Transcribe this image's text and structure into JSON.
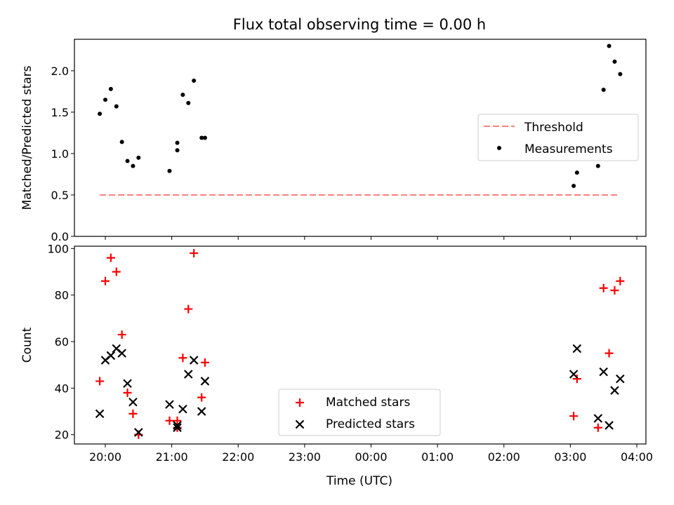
{
  "chart_data": [
    {
      "type": "scatter",
      "title": "Flux total observing time = 0.00 h",
      "ylabel": "Matched/Predicted stars",
      "xlabel": "",
      "x_tick_labels": [
        "20:00",
        "21:00",
        "22:00",
        "23:00",
        "00:00",
        "01:00",
        "02:00",
        "03:00",
        "04:00"
      ],
      "y_ticks": [
        0.0,
        0.5,
        1.0,
        1.5,
        2.0
      ],
      "y_tick_labels": [
        "0.0",
        "0.5",
        "1.0",
        "1.5",
        "2.0"
      ],
      "ylim": [
        0,
        2.38
      ],
      "legend_position": "center-right",
      "threshold": {
        "name": "Threshold",
        "value": 0.5,
        "x_range": [
          "19:55",
          "03:45"
        ],
        "color": "#ff7f7f",
        "style": "dashed"
      },
      "series": [
        {
          "name": "Measurements",
          "color": "#000000",
          "marker": "dot",
          "x": [
            "19:55",
            "20:00",
            "20:05",
            "20:10",
            "20:15",
            "20:20",
            "20:25",
            "20:30",
            "20:58",
            "21:05",
            "21:05",
            "21:10",
            "21:15",
            "21:20",
            "21:27",
            "21:30",
            "03:03",
            "03:06",
            "03:25",
            "03:30",
            "03:35",
            "03:40",
            "03:45"
          ],
          "y": [
            1.48,
            1.65,
            1.78,
            1.57,
            1.14,
            0.91,
            0.85,
            0.95,
            0.79,
            1.13,
            1.04,
            1.71,
            1.61,
            1.88,
            1.19,
            1.19,
            0.61,
            0.77,
            0.85,
            1.77,
            2.3,
            2.11,
            1.96
          ]
        }
      ]
    },
    {
      "type": "scatter",
      "title": "",
      "ylabel": "Count",
      "xlabel": "Time (UTC)",
      "x_tick_labels": [
        "20:00",
        "21:00",
        "22:00",
        "23:00",
        "00:00",
        "01:00",
        "02:00",
        "03:00",
        "04:00"
      ],
      "y_ticks": [
        20,
        40,
        60,
        80,
        100
      ],
      "y_tick_labels": [
        "20",
        "40",
        "60",
        "80",
        "100"
      ],
      "ylim": [
        16,
        101
      ],
      "legend_position": "bottom-center",
      "series": [
        {
          "name": "Matched stars",
          "color": "#ff0000",
          "marker": "plus",
          "x": [
            "19:55",
            "20:00",
            "20:05",
            "20:10",
            "20:15",
            "20:20",
            "20:25",
            "20:30",
            "20:58",
            "21:05",
            "21:05",
            "21:10",
            "21:15",
            "21:20",
            "21:27",
            "21:30",
            "03:03",
            "03:06",
            "03:25",
            "03:30",
            "03:35",
            "03:40",
            "03:45"
          ],
          "y": [
            43,
            86,
            96,
            90,
            63,
            38,
            29,
            20,
            26,
            26,
            23,
            53,
            74,
            98,
            36,
            51,
            28,
            44,
            23,
            83,
            55,
            82,
            86
          ]
        },
        {
          "name": "Predicted stars",
          "color": "#000000",
          "marker": "x",
          "x": [
            "19:55",
            "20:00",
            "20:05",
            "20:10",
            "20:15",
            "20:20",
            "20:25",
            "20:30",
            "20:58",
            "21:05",
            "21:05",
            "21:10",
            "21:15",
            "21:20",
            "21:27",
            "21:30",
            "03:03",
            "03:06",
            "03:25",
            "03:30",
            "03:35",
            "03:40",
            "03:45"
          ],
          "y": [
            29,
            52,
            54,
            57,
            55,
            42,
            34,
            21,
            33,
            24,
            23,
            31,
            46,
            52,
            30,
            43,
            46,
            57,
            27,
            47,
            24,
            39,
            44
          ]
        }
      ]
    }
  ]
}
